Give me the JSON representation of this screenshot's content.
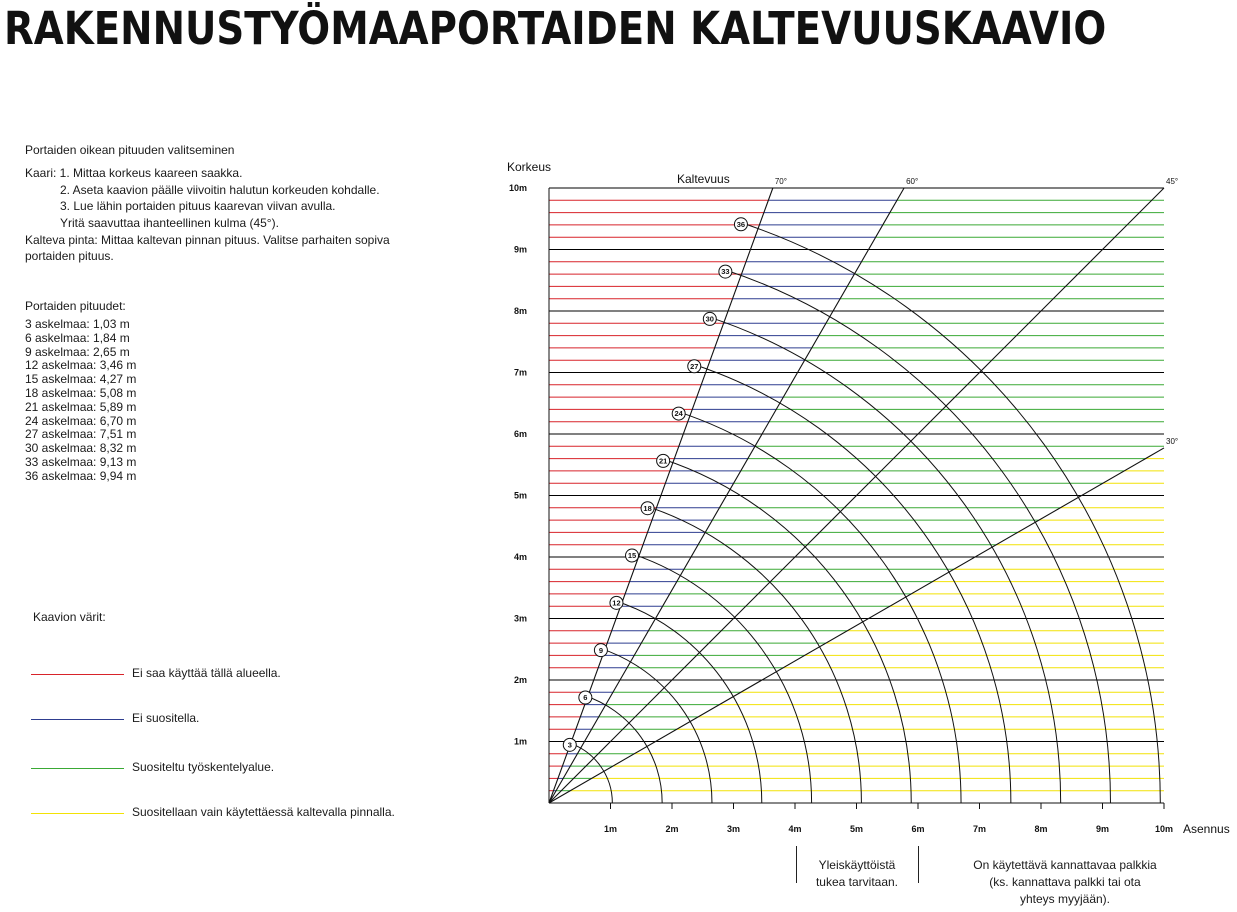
{
  "title": "RAKENNUSTYÖMAAPORTAIDEN KALTEVUUSKAAVIO",
  "instructions": {
    "heading": "Portaiden oikean pituuden valitseminen",
    "lines": [
      "Kaari: 1. Mittaa korkeus kaareen saakka.",
      "2. Aseta kaavion päälle viivoitin halutun korkeuden kohdalle.",
      "3. Lue lähin portaiden pituus kaarevan viivan avulla.",
      "Yritä saavuttaa ihanteellinen kulma (45°).",
      "Kalteva pinta: Mittaa kaltevan pinnan pituus. Valitse parhaiten sopiva",
      "portaiden pituus."
    ]
  },
  "lengths": {
    "heading": "Portaiden pituudet:",
    "items": [
      "3 askelmaa: 1,03 m",
      "6 askelmaa: 1,84 m",
      "9 askelmaa: 2,65 m",
      "12 askelmaa: 3,46 m",
      "15 askelmaa: 4,27 m",
      "18 askelmaa: 5,08 m",
      "21 askelmaa: 5,89 m",
      "24 askelmaa: 6,70 m",
      "27 askelmaa: 7,51 m",
      "30 askelmaa: 8,32 m",
      "33 askelmaa: 9,13 m",
      "36 askelmaa: 9,94 m"
    ]
  },
  "legend": {
    "heading": "Kaavion värit:",
    "items": [
      {
        "label": "Ei saa käyttää tällä alueella.",
        "color": "#d8232a"
      },
      {
        "label": "Ei suositella.",
        "color": "#2e3d8f"
      },
      {
        "label": "Suositeltu työskentelyalue.",
        "color": "#3aa935"
      },
      {
        "label": "Suositellaan vain käytettäessä kaltevalla pinnalla.",
        "color": "#f2e205"
      }
    ]
  },
  "notes": {
    "support": "Yleiskäyttöistä\ntukea tarvitaan.",
    "beam": "On käytettävä kannattavaa palkkia\n(ks. kannattava palkki tai ota\nyhteys myyjään)."
  },
  "chart_data": {
    "type": "line",
    "ylabel": "Korkeus",
    "xlabel": "Asennus",
    "angle_label": "Kaltevuus",
    "x_ticks": [
      "1m",
      "2m",
      "3m",
      "4m",
      "5m",
      "6m",
      "7m",
      "8m",
      "9m",
      "10m"
    ],
    "y_ticks": [
      "1m",
      "2m",
      "3m",
      "4m",
      "5m",
      "6m",
      "7m",
      "8m",
      "9m",
      "10m"
    ],
    "xlim": [
      0,
      10
    ],
    "ylim": [
      0,
      10
    ],
    "grid_step": 0.2,
    "angles": [
      {
        "label": "70°",
        "deg": 70
      },
      {
        "label": "60°",
        "deg": 60
      },
      {
        "label": "45°",
        "deg": 45
      },
      {
        "label": "30°",
        "deg": 30
      }
    ],
    "zones": [
      {
        "name": "red",
        "color": "#d8232a",
        "from_deg": 70,
        "to_deg": 90
      },
      {
        "name": "blue",
        "color": "#2e3d8f",
        "from_deg": 60,
        "to_deg": 70
      },
      {
        "name": "green",
        "color": "#3aa935",
        "from_deg": 30,
        "to_deg": 60
      },
      {
        "name": "yellow",
        "color": "#f2e205",
        "from_deg": 0,
        "to_deg": 30
      }
    ],
    "arcs": [
      {
        "steps": 3,
        "length": 1.03
      },
      {
        "steps": 6,
        "length": 1.84
      },
      {
        "steps": 9,
        "length": 2.65
      },
      {
        "steps": 12,
        "length": 3.46
      },
      {
        "steps": 15,
        "length": 4.27
      },
      {
        "steps": 18,
        "length": 5.08
      },
      {
        "steps": 21,
        "length": 5.89
      },
      {
        "steps": 24,
        "length": 6.7
      },
      {
        "steps": 27,
        "length": 7.51
      },
      {
        "steps": 30,
        "length": 8.32
      },
      {
        "steps": 33,
        "length": 9.13
      },
      {
        "steps": 36,
        "length": 9.94
      }
    ],
    "marker_x": [
      4,
      6
    ]
  }
}
